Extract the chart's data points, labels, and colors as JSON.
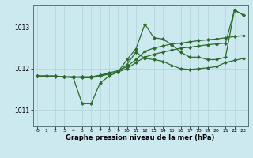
{
  "background_color": "#cce9f0",
  "plot_bg_color": "#cce9f0",
  "grid_color": "#b0d4d8",
  "line_color": "#2d6a2d",
  "title": "Graphe pression niveau de la mer (hPa)",
  "xlim": [
    -0.5,
    23.5
  ],
  "ylim": [
    1010.6,
    1013.55
  ],
  "yticks": [
    1011,
    1012,
    1013
  ],
  "xticks": [
    0,
    1,
    2,
    3,
    4,
    5,
    6,
    7,
    8,
    9,
    10,
    11,
    12,
    13,
    14,
    15,
    16,
    17,
    18,
    19,
    20,
    21,
    22,
    23
  ],
  "series1_x": [
    0,
    1,
    2,
    3,
    4,
    5,
    6,
    7,
    8,
    9,
    10,
    11,
    12,
    13,
    14,
    15,
    16,
    17,
    18,
    19,
    20,
    21,
    22,
    23
  ],
  "series1_y": [
    1011.82,
    1011.82,
    1011.82,
    1011.8,
    1011.8,
    1011.8,
    1011.8,
    1011.84,
    1011.88,
    1011.92,
    1012.1,
    1012.4,
    1012.25,
    1012.22,
    1012.18,
    1012.08,
    1012.0,
    1011.98,
    1012.0,
    1012.02,
    1012.05,
    1012.15,
    1012.2,
    1012.25
  ],
  "series2_x": [
    0,
    1,
    2,
    3,
    4,
    5,
    6,
    7,
    8,
    9,
    10,
    11,
    12,
    13,
    14,
    15,
    16,
    17,
    18,
    19,
    20,
    21,
    22,
    23
  ],
  "series2_y": [
    1011.82,
    1011.82,
    1011.82,
    1011.8,
    1011.8,
    1011.78,
    1011.78,
    1011.82,
    1011.87,
    1011.92,
    1012.0,
    1012.15,
    1012.28,
    1012.35,
    1012.4,
    1012.45,
    1012.5,
    1012.52,
    1012.55,
    1012.58,
    1012.6,
    1012.62,
    1013.42,
    1013.3
  ],
  "series3_x": [
    0,
    1,
    2,
    3,
    4,
    5,
    6,
    7,
    8,
    9,
    10,
    11,
    12,
    13,
    14,
    15,
    16,
    17,
    18,
    19,
    20,
    21,
    22,
    23
  ],
  "series3_y": [
    1011.82,
    1011.82,
    1011.8,
    1011.8,
    1011.78,
    1011.15,
    1011.15,
    1011.65,
    1011.82,
    1011.92,
    1012.22,
    1012.48,
    1013.08,
    1012.75,
    1012.72,
    1012.58,
    1012.4,
    1012.28,
    1012.28,
    1012.22,
    1012.22,
    1012.28,
    1013.42,
    1013.3
  ],
  "series4_x": [
    0,
    1,
    2,
    3,
    4,
    5,
    6,
    7,
    8,
    9,
    10,
    11,
    12,
    13,
    14,
    15,
    16,
    17,
    18,
    19,
    20,
    21,
    22,
    23
  ],
  "series4_y": [
    1011.82,
    1011.82,
    1011.82,
    1011.8,
    1011.8,
    1011.8,
    1011.8,
    1011.84,
    1011.9,
    1011.95,
    1012.05,
    1012.22,
    1012.42,
    1012.5,
    1012.55,
    1012.6,
    1012.62,
    1012.65,
    1012.68,
    1012.7,
    1012.72,
    1012.75,
    1012.78,
    1012.8
  ]
}
